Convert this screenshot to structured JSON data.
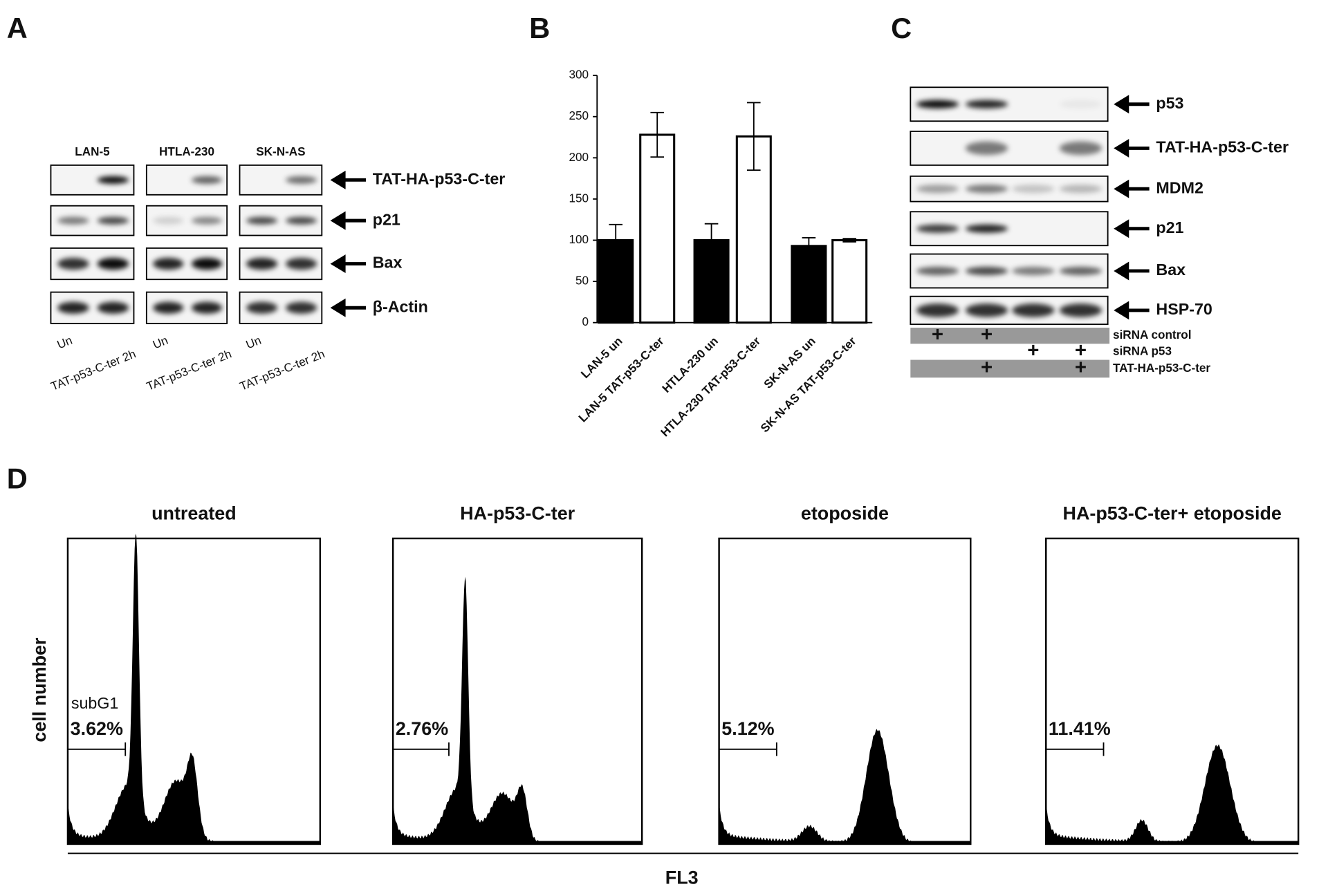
{
  "panel_labels": [
    "A",
    "B",
    "C",
    "D"
  ],
  "panel_a": {
    "cell_lines": [
      "LAN-5",
      "HTLA-230",
      "SK-N-AS"
    ],
    "proteins": [
      "TAT-HA-p53-C-ter",
      "p21",
      "Bax",
      "β-Actin"
    ],
    "lanes": [
      "Un",
      "TAT-p53-C-ter 2h"
    ]
  },
  "chart_data": {
    "type": "bar",
    "categories": [
      "LAN-5 un",
      "LAN-5 TAT-p53-C-ter",
      "HTLA-230 un",
      "HTLA-230 TAT-p53-C-ter",
      "SK-N-AS un",
      "SK-N-AS TAT-p53-C-ter"
    ],
    "values": [
      100,
      228,
      100,
      226,
      93,
      100
    ],
    "errors": [
      19,
      27,
      20,
      41,
      10,
      2
    ],
    "colors": [
      "#000000",
      "#ffffff",
      "#000000",
      "#ffffff",
      "#000000",
      "#ffffff"
    ],
    "ylim": [
      0,
      300
    ],
    "yticks": [
      0,
      50,
      100,
      150,
      200,
      250,
      300
    ],
    "grid": false
  },
  "panel_c": {
    "proteins": [
      "p53",
      "TAT-HA-p53-C-ter",
      "MDM2",
      "p21",
      "Bax",
      "HSP-70"
    ],
    "treatments": [
      {
        "label": "siRNA control",
        "lanes": [
          "+",
          "+",
          null,
          null
        ]
      },
      {
        "label": "siRNA p53",
        "lanes": [
          null,
          null,
          "+",
          "+"
        ]
      },
      {
        "label": "TAT-HA-p53-C-ter",
        "lanes": [
          null,
          "+",
          null,
          "+"
        ]
      }
    ]
  },
  "panel_d": {
    "titles": [
      "untreated",
      "HA-p53-C-ter",
      "etoposide",
      "HA-p53-C-ter+ etoposide"
    ],
    "subg1_label": "subG1",
    "percentages": [
      "3.62%",
      "2.76%",
      "5.12%",
      "11.41%"
    ],
    "y_label": "cell number",
    "x_label": "FL3"
  }
}
